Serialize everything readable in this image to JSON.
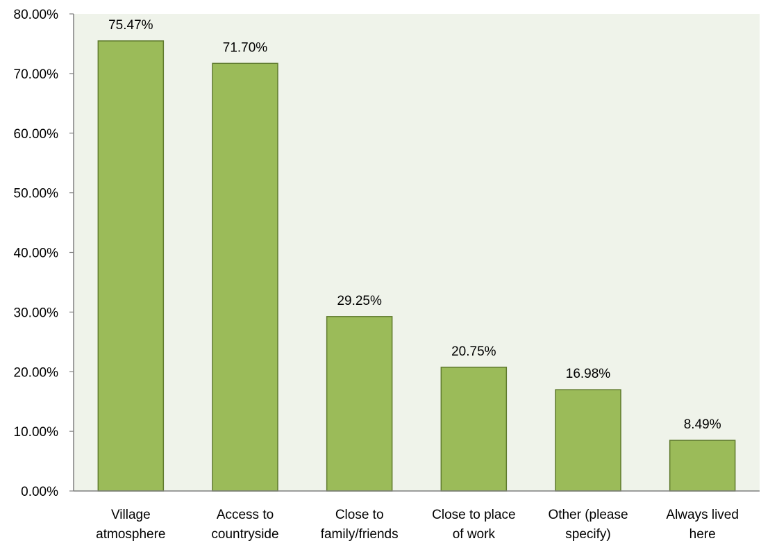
{
  "chart_data": {
    "type": "bar",
    "categories": [
      [
        "Village",
        "atmosphere"
      ],
      [
        "Access to",
        "countryside"
      ],
      [
        "Close to",
        "family/friends"
      ],
      [
        "Close to place",
        "of work"
      ],
      [
        "Other (please",
        "specify)"
      ],
      [
        "Always lived",
        "here"
      ]
    ],
    "values": [
      75.47,
      71.7,
      29.25,
      20.75,
      16.98,
      8.49
    ],
    "data_labels": [
      "75.47%",
      "71.70%",
      "29.25%",
      "20.75%",
      "16.98%",
      "8.49%"
    ],
    "yticks": [
      0,
      10,
      20,
      30,
      40,
      50,
      60,
      70,
      80
    ],
    "ytick_labels": [
      "0.00%",
      "10.00%",
      "20.00%",
      "30.00%",
      "40.00%",
      "50.00%",
      "60.00%",
      "70.00%",
      "80.00%"
    ],
    "ylim": [
      0,
      80
    ],
    "grid": false,
    "legend": "none",
    "colors": {
      "bar_fill": "#9bbb59",
      "bar_stroke": "#5f7a2d",
      "plot_background": "#eff3ea",
      "axis": "#7f7f7f"
    }
  }
}
